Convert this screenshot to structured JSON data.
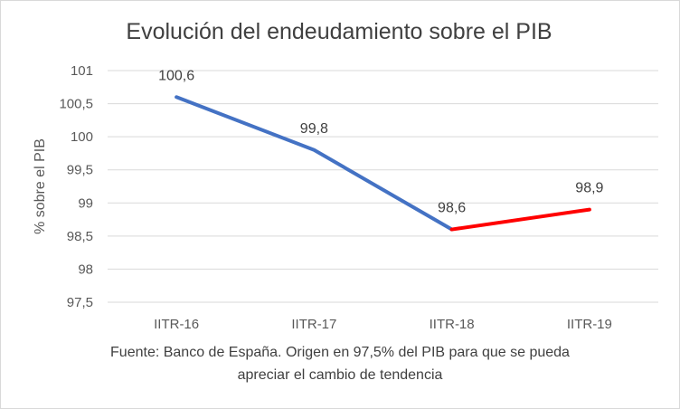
{
  "chart_data": {
    "type": "line",
    "title": "Evolución del endeudamiento sobre el PIB",
    "ylabel": "% sobre el PIB",
    "xlabel": "",
    "categories": [
      "IITR-16",
      "IITR-17",
      "IITR-18",
      "IITR-19"
    ],
    "values": [
      100.6,
      99.8,
      98.6,
      98.9
    ],
    "data_labels": [
      "100,6",
      "99,8",
      "98,6",
      "98,9"
    ],
    "ylim": [
      97.5,
      101
    ],
    "ytick_values": [
      97.5,
      98,
      98.5,
      99,
      99.5,
      100,
      100.5,
      101
    ],
    "ytick_labels": [
      "97,5",
      "98",
      "98,5",
      "99",
      "99,5",
      "100",
      "100,5",
      "101"
    ],
    "grid": true,
    "segments": [
      {
        "name": "descenso",
        "from": 0,
        "to": 2,
        "color": "#4472c4"
      },
      {
        "name": "subida",
        "from": 2,
        "to": 3,
        "color": "#ff0000"
      }
    ],
    "caption_lines": [
      "Fuente: Banco de España. Origen en 97,5% del PIB para que se pueda",
      "apreciar el cambio de tendencia"
    ]
  }
}
